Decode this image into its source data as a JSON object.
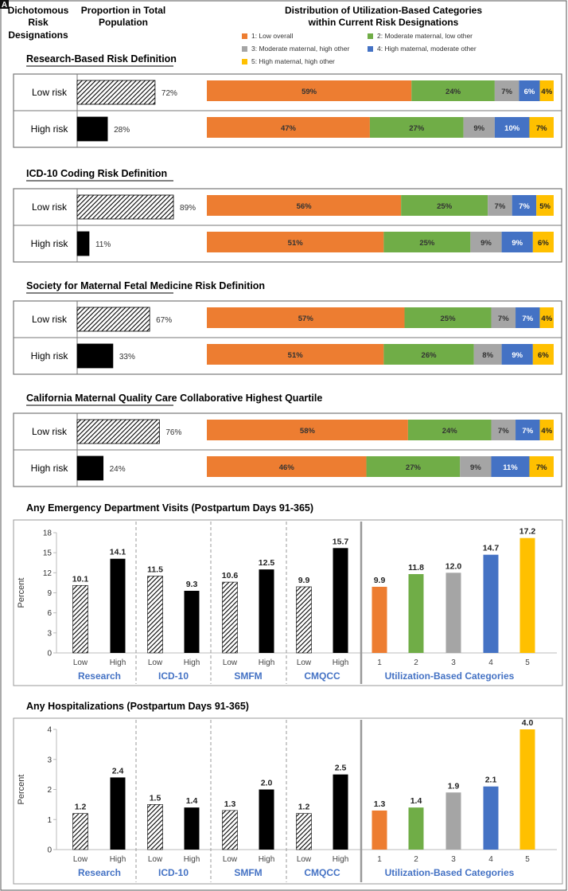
{
  "panel_label": "A",
  "header": {
    "col1": [
      "Dichotomous",
      "Risk",
      "Designations"
    ],
    "col2": [
      "Proportion in Total",
      "Population"
    ],
    "col3": [
      "Distribution of Utilization-Based Categories",
      "within Current Risk Designations"
    ]
  },
  "colors": {
    "cat1": "#ED7D31",
    "cat2": "#70AD47",
    "cat3": "#A5A5A5",
    "cat4": "#4472C4",
    "cat5": "#FFC000",
    "high": "#000000",
    "axis_label": "#4472C4"
  },
  "legend": [
    {
      "label": "1: Low overall",
      "color": "#ED7D31"
    },
    {
      "label": "2: Moderate maternal, low other",
      "color": "#70AD47"
    },
    {
      "label": "3: Moderate maternal, high other",
      "color": "#A5A5A5"
    },
    {
      "label": "4: High maternal, moderate other",
      "color": "#4472C4"
    },
    {
      "label": "5: High maternal, high other",
      "color": "#FFC000"
    }
  ],
  "chart_data": [
    {
      "type": "bar",
      "orientation": "horizontal-stacked",
      "title": "Research-Based Risk Definition",
      "rows": [
        {
          "label": "Low risk",
          "proportion": 72,
          "distribution": [
            59,
            24,
            7,
            6,
            4
          ]
        },
        {
          "label": "High risk",
          "proportion": 28,
          "distribution": [
            47,
            27,
            9,
            10,
            7
          ]
        }
      ]
    },
    {
      "type": "bar",
      "orientation": "horizontal-stacked",
      "title": "ICD-10 Coding Risk Definition",
      "rows": [
        {
          "label": "Low risk",
          "proportion": 89,
          "distribution": [
            56,
            25,
            7,
            7,
            5
          ]
        },
        {
          "label": "High risk",
          "proportion": 11,
          "distribution": [
            51,
            25,
            9,
            9,
            6
          ]
        }
      ]
    },
    {
      "type": "bar",
      "orientation": "horizontal-stacked",
      "title": "Society for Maternal Fetal Medicine Risk Definition",
      "rows": [
        {
          "label": "Low risk",
          "proportion": 67,
          "distribution": [
            57,
            25,
            7,
            7,
            4
          ]
        },
        {
          "label": "High risk",
          "proportion": 33,
          "distribution": [
            51,
            26,
            8,
            9,
            6
          ]
        }
      ]
    },
    {
      "type": "bar",
      "orientation": "horizontal-stacked",
      "title": "California Maternal Quality Care Collaborative Highest Quartile",
      "rows": [
        {
          "label": "Low risk",
          "proportion": 76,
          "distribution": [
            58,
            24,
            7,
            7,
            4
          ]
        },
        {
          "label": "High risk",
          "proportion": 24,
          "distribution": [
            46,
            27,
            9,
            11,
            7
          ]
        }
      ]
    },
    {
      "type": "bar",
      "title": "Any Emergency Department Visits (Postpartum Days 91-365)",
      "ylabel": "Percent",
      "ylim": [
        0,
        18
      ],
      "yticks": [
        0,
        3,
        6,
        9,
        12,
        15,
        18
      ],
      "groups": [
        {
          "name": "Research",
          "bars": [
            {
              "x": "Low",
              "value": 10.1,
              "label": "10.1",
              "style": "low"
            },
            {
              "x": "High",
              "value": 14.1,
              "label": "14.1",
              "style": "high"
            }
          ]
        },
        {
          "name": "ICD-10",
          "bars": [
            {
              "x": "Low",
              "value": 11.5,
              "label": "11.5",
              "style": "low"
            },
            {
              "x": "High",
              "value": 9.3,
              "label": "9.3",
              "style": "high"
            }
          ]
        },
        {
          "name": "SMFM",
          "bars": [
            {
              "x": "Low",
              "value": 10.6,
              "label": "10.6",
              "style": "low"
            },
            {
              "x": "High",
              "value": 12.5,
              "label": "12.5",
              "style": "high"
            }
          ]
        },
        {
          "name": "CMQCC",
          "bars": [
            {
              "x": "Low",
              "value": 9.9,
              "label": "9.9",
              "style": "low"
            },
            {
              "x": "High",
              "value": 15.7,
              "label": "15.7",
              "style": "high"
            }
          ]
        },
        {
          "name": "Utilization-Based Categories",
          "bars": [
            {
              "x": "1",
              "value": 9.9,
              "label": "9.9",
              "style": "cat1"
            },
            {
              "x": "2",
              "value": 11.8,
              "label": "11.8",
              "style": "cat2"
            },
            {
              "x": "3",
              "value": 12.0,
              "label": "12.0",
              "style": "cat3"
            },
            {
              "x": "4",
              "value": 14.7,
              "label": "14.7",
              "style": "cat4"
            },
            {
              "x": "5",
              "value": 17.2,
              "label": "17.2",
              "style": "cat5"
            }
          ]
        }
      ]
    },
    {
      "type": "bar",
      "title": "Any Hospitalizations (Postpartum Days 91-365)",
      "ylabel": "Percent",
      "ylim": [
        0,
        4
      ],
      "yticks": [
        0,
        1,
        2,
        3,
        4
      ],
      "groups": [
        {
          "name": "Research",
          "bars": [
            {
              "x": "Low",
              "value": 1.2,
              "label": "1.2",
              "style": "low"
            },
            {
              "x": "High",
              "value": 2.4,
              "label": "2.4",
              "style": "high"
            }
          ]
        },
        {
          "name": "ICD-10",
          "bars": [
            {
              "x": "Low",
              "value": 1.5,
              "label": "1.5",
              "style": "low"
            },
            {
              "x": "High",
              "value": 1.4,
              "label": "1.4",
              "style": "high"
            }
          ]
        },
        {
          "name": "SMFM",
          "bars": [
            {
              "x": "Low",
              "value": 1.3,
              "label": "1.3",
              "style": "low"
            },
            {
              "x": "High",
              "value": 2.0,
              "label": "2.0",
              "style": "high"
            }
          ]
        },
        {
          "name": "CMQCC",
          "bars": [
            {
              "x": "Low",
              "value": 1.2,
              "label": "1.2",
              "style": "low"
            },
            {
              "x": "High",
              "value": 2.5,
              "label": "2.5",
              "style": "high"
            }
          ]
        },
        {
          "name": "Utilization-Based Categories",
          "bars": [
            {
              "x": "1",
              "value": 1.3,
              "label": "1.3",
              "style": "cat1"
            },
            {
              "x": "2",
              "value": 1.4,
              "label": "1.4",
              "style": "cat2"
            },
            {
              "x": "3",
              "value": 1.9,
              "label": "1.9",
              "style": "cat3"
            },
            {
              "x": "4",
              "value": 2.1,
              "label": "2.1",
              "style": "cat4"
            },
            {
              "x": "5",
              "value": 4.0,
              "label": "4.0",
              "style": "cat5"
            }
          ]
        }
      ]
    }
  ]
}
